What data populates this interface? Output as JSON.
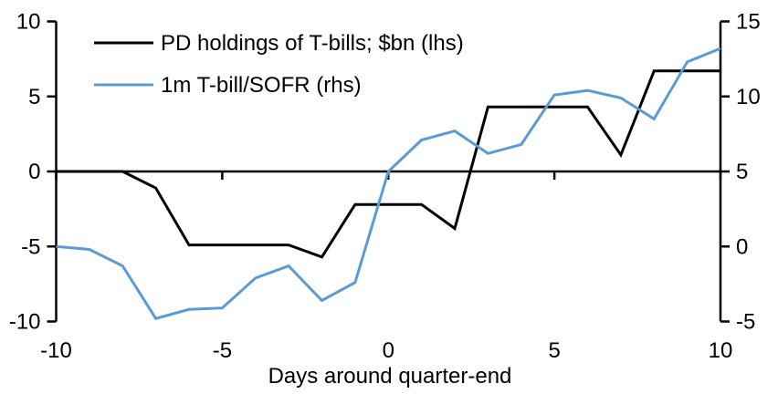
{
  "chart_data": {
    "type": "line",
    "x": [
      -10,
      -9,
      -8,
      -7,
      -6,
      -5,
      -4,
      -3,
      -2,
      -1,
      0,
      1,
      2,
      3,
      4,
      5,
      6,
      7,
      8,
      9,
      10
    ],
    "series": [
      {
        "name": "PD holdings of T-bills; $bn (lhs)",
        "axis": "left",
        "color": "#000000",
        "values": [
          0,
          0,
          0,
          -1.1,
          -4.9,
          -4.9,
          -4.9,
          -4.9,
          -5.7,
          -2.2,
          -2.2,
          -2.2,
          -3.8,
          4.3,
          4.3,
          4.3,
          4.3,
          1.1,
          6.7,
          6.7,
          6.7
        ]
      },
      {
        "name": "1m T-bill/SOFR (rhs)",
        "axis": "right",
        "color": "#5B9BD5",
        "values": [
          0,
          -0.2,
          -1.3,
          -4.8,
          -4.2,
          -4.1,
          -2.1,
          -1.3,
          -3.6,
          -2.4,
          5.0,
          7.1,
          7.7,
          6.2,
          6.8,
          10.1,
          10.4,
          9.9,
          8.5,
          12.3,
          13.2
        ]
      }
    ],
    "xlabel": "Days around quarter-end",
    "left_axis": {
      "min": -10,
      "max": 10,
      "ticks": [
        10,
        5,
        0,
        -5,
        -10
      ]
    },
    "right_axis": {
      "min": -5,
      "max": 15,
      "ticks": [
        15,
        10,
        5,
        0,
        -5
      ]
    },
    "x_ticks": [
      -10,
      -5,
      0,
      5,
      10
    ],
    "x_range": [
      -10,
      10
    ],
    "legend_position": "top-left",
    "grid": false,
    "axis_color": "#000000",
    "background": "#ffffff"
  }
}
